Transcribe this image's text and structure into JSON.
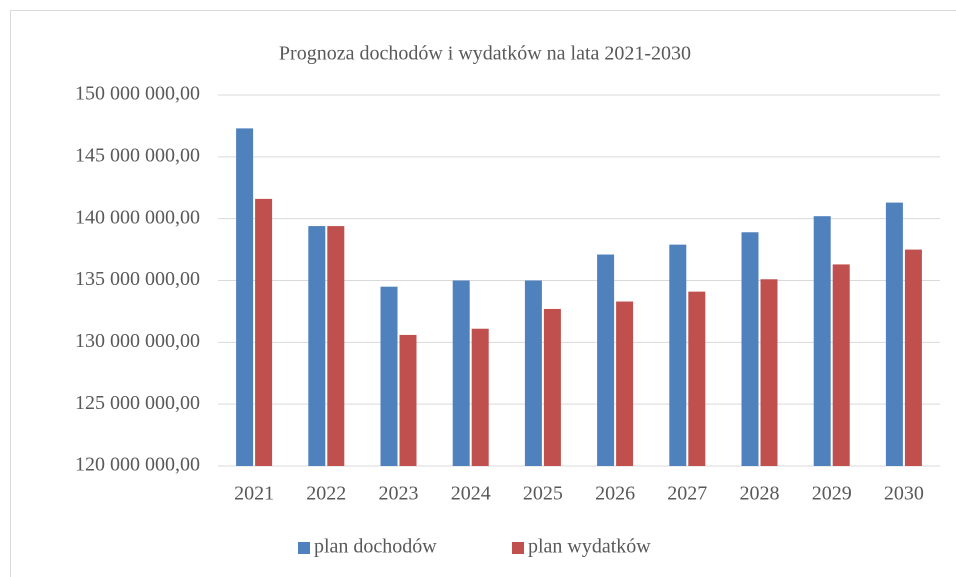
{
  "chart_data": {
    "type": "bar",
    "title": "Prognoza dochodów i wydatków na lata 2021-2030",
    "categories": [
      "2021",
      "2022",
      "2023",
      "2024",
      "2025",
      "2026",
      "2027",
      "2028",
      "2029",
      "2030"
    ],
    "series": [
      {
        "name": "plan dochodów",
        "color": "#4f81bd",
        "values": [
          147300000,
          139400000,
          134500000,
          135000000,
          135000000,
          137100000,
          137900000,
          138900000,
          140200000,
          141300000
        ]
      },
      {
        "name": "plan wydatków",
        "color": "#c0504d",
        "values": [
          141600000,
          139400000,
          130600000,
          131100000,
          132700000,
          133300000,
          134100000,
          135100000,
          136300000,
          137500000
        ]
      }
    ],
    "ylim": [
      120000000,
      150000000
    ],
    "yticks": [
      {
        "value": 120000000,
        "label": "120 000 000,00"
      },
      {
        "value": 125000000,
        "label": "125 000 000,00"
      },
      {
        "value": 130000000,
        "label": "130 000 000,00"
      },
      {
        "value": 135000000,
        "label": "135 000 000,00"
      },
      {
        "value": 140000000,
        "label": "140 000 000,00"
      },
      {
        "value": 145000000,
        "label": "145 000 000,00"
      },
      {
        "value": 150000000,
        "label": "150 000 000,00"
      }
    ],
    "grid": true,
    "legend": "bottom"
  }
}
